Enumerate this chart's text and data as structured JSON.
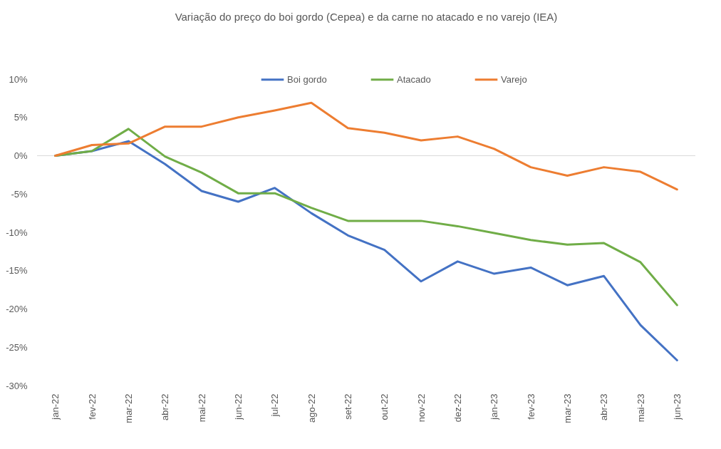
{
  "chart_data": {
    "type": "line",
    "title": "Variação do preço do boi gordo (Cepea) e da carne no atacado e no varejo (IEA)",
    "categories": [
      "jan-22",
      "fev-22",
      "mar-22",
      "abr-22",
      "mai-22",
      "jun-22",
      "jul-22",
      "ago-22",
      "set-22",
      "out-22",
      "nov-22",
      "dez-22",
      "jan-23",
      "fev-23",
      "mar-23",
      "abr-23",
      "mai-23",
      "jun-23"
    ],
    "series": [
      {
        "name": "Boi gordo",
        "color": "#4472c4",
        "values": [
          0,
          0.6,
          1.9,
          -1.1,
          -4.6,
          -6.0,
          -4.2,
          -7.5,
          -10.4,
          -12.3,
          -16.4,
          -13.8,
          -15.4,
          -14.6,
          -16.9,
          -15.7,
          -22.1,
          -26.7
        ]
      },
      {
        "name": "Atacado",
        "color": "#70ad47",
        "values": [
          0,
          0.6,
          3.5,
          -0.1,
          -2.2,
          -4.9,
          -4.9,
          -6.8,
          -8.5,
          -8.5,
          -8.5,
          -9.2,
          -10.1,
          -11.0,
          -11.6,
          -11.4,
          -13.9,
          -19.5
        ]
      },
      {
        "name": "Varejo",
        "color": "#ed7d31",
        "values": [
          0,
          1.4,
          1.6,
          3.8,
          3.8,
          5.0,
          5.9,
          6.9,
          3.6,
          3.0,
          2.0,
          2.5,
          0.9,
          -1.5,
          -2.6,
          -1.5,
          -2.1,
          -4.4
        ]
      }
    ],
    "ylim": [
      -30,
      10
    ],
    "yticks": [
      {
        "value": -30,
        "label": "-30%"
      },
      {
        "value": -25,
        "label": "-25%"
      },
      {
        "value": -20,
        "label": "-20%"
      },
      {
        "value": -15,
        "label": "-15%"
      },
      {
        "value": -10,
        "label": "-10%"
      },
      {
        "value": -5,
        "label": "-5%"
      },
      {
        "value": 0,
        "label": "0%"
      },
      {
        "value": 5,
        "label": "5%"
      },
      {
        "value": 10,
        "label": "10%"
      }
    ],
    "ref_lines": [
      {
        "axis": "y",
        "value": 0,
        "color": "#d9d9d9"
      }
    ],
    "grid": false,
    "legend": "top"
  }
}
